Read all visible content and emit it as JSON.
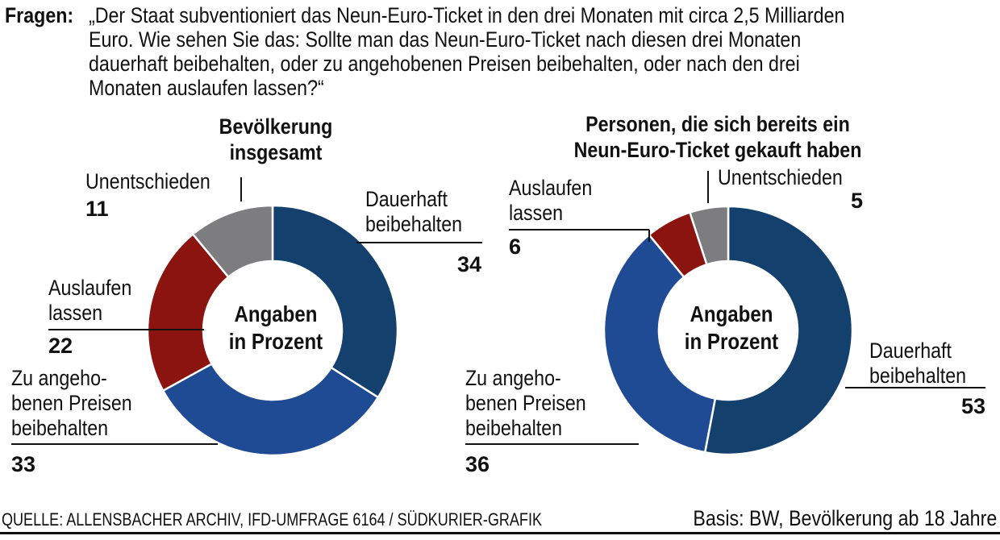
{
  "header": {
    "label": "Fragen:",
    "question": "„Der Staat subventioniert das Neun-Euro-Ticket in den drei Monaten mit circa 2,5 Milliarden\n Euro. Wie sehen Sie das: Sollte man das Neun-Euro-Ticket nach diesen drei Monaten\ndauerhaft  beibehalten, oder zu angehobenen Preisen beibehalten, oder nach den drei\nMonaten auslaufen lassen?“"
  },
  "footer": {
    "source": "QUELLE: ALLENSBACHER ARCHIV, IFD-UMFRAGE 6164 / SÜDKURIER-GRAFIK",
    "basis": "Basis: BW, Bevölkerung ab 18 Jahre"
  },
  "colors": {
    "dauerhaft": "#14406e",
    "angehoben": "#1f4a94",
    "auslaufen": "#8c1410",
    "unentschieden": "#7d7d7f"
  },
  "chart_data": [
    {
      "type": "pie",
      "title": "Bevölkerung insgesamt",
      "center_label": "Angaben in Prozent",
      "slices": [
        {
          "label": "Dauerhaft beibehalten",
          "value": 34,
          "color_key": "dauerhaft"
        },
        {
          "label": "Zu angehobenen Preisen beibehalten",
          "value": 33,
          "color_key": "angehoben"
        },
        {
          "label": "Auslaufen lassen",
          "value": 22,
          "color_key": "auslaufen"
        },
        {
          "label": "Unentschieden",
          "value": 11,
          "color_key": "unentschieden"
        }
      ]
    },
    {
      "type": "pie",
      "title": "Personen, die sich bereits ein Neun-Euro-Ticket gekauft haben",
      "center_label": "Angaben in Prozent",
      "slices": [
        {
          "label": "Dauerhaft beibehalten",
          "value": 53,
          "color_key": "dauerhaft"
        },
        {
          "label": "Zu angehobenen Preisen beibehalten",
          "value": 36,
          "color_key": "angehoben"
        },
        {
          "label": "Auslaufen lassen",
          "value": 6,
          "color_key": "auslaufen"
        },
        {
          "label": "Unentschieden",
          "value": 5,
          "color_key": "unentschieden"
        }
      ]
    }
  ],
  "labels": {
    "c1": {
      "title_lines": [
        "Bevölkerung",
        "insgesamt"
      ],
      "center_lines": [
        "Angaben",
        "in Prozent"
      ],
      "slice_lines": [
        [
          "Dauerhaft",
          "beibehalten"
        ],
        [
          "Zu angeho-",
          "benen Preisen",
          "beibehalten"
        ],
        [
          "Auslaufen",
          "lassen"
        ],
        [
          "Unentschieden"
        ]
      ]
    },
    "c2": {
      "title_lines": [
        "Personen, die sich bereits ein",
        "Neun-Euro-Ticket gekauft haben"
      ],
      "center_lines": [
        "Angaben",
        "in Prozent"
      ],
      "slice_lines": [
        [
          "Dauerhaft",
          "beibehalten"
        ],
        [
          "Zu angeho-",
          "benen Preisen",
          "beibehalten"
        ],
        [
          "Auslaufen",
          "lassen"
        ],
        [
          "Unentschieden"
        ]
      ]
    }
  }
}
